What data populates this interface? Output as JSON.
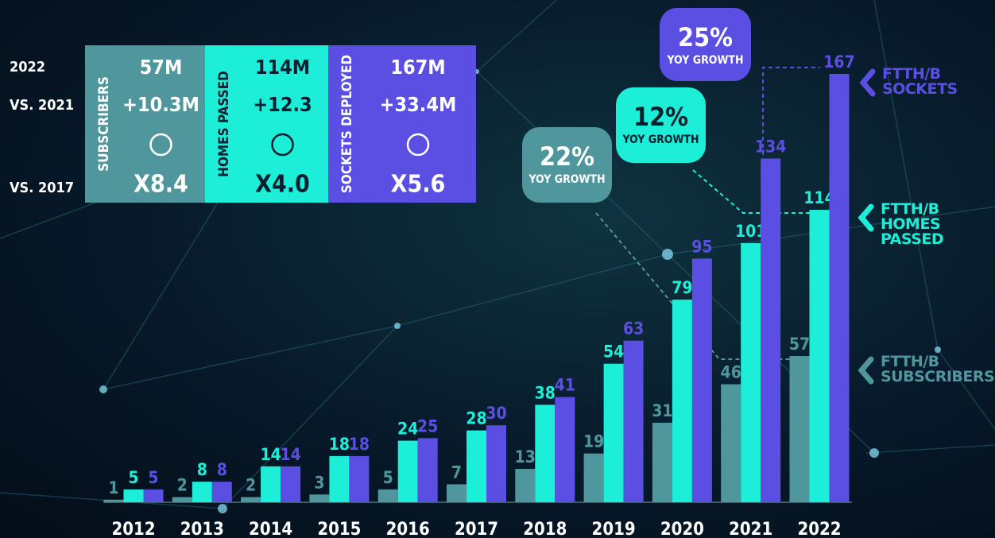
{
  "chart_data": {
    "type": "bar",
    "categories": [
      "2012",
      "2013",
      "2014",
      "2015",
      "2016",
      "2017",
      "2018",
      "2019",
      "2020",
      "2021",
      "2022"
    ],
    "series": [
      {
        "name": "FTTH/B SUBSCRIBERS",
        "color": "#4f979c",
        "values": [
          1,
          2,
          2,
          3,
          5,
          7,
          13,
          19,
          31,
          46,
          57
        ]
      },
      {
        "name": "FTTH/B HOMES PASSED",
        "color": "#1ceed8",
        "values": [
          5,
          8,
          14,
          18,
          24,
          28,
          38,
          54,
          79,
          101,
          114
        ]
      },
      {
        "name": "FTTH/B SOCKETS",
        "color": "#5b4ee2",
        "values": [
          5,
          8,
          14,
          18,
          25,
          30,
          41,
          63,
          95,
          134,
          167
        ]
      }
    ]
  },
  "panel": {
    "row_labels": [
      "2022",
      "VS. 2021",
      "VS. 2017"
    ],
    "cards": [
      {
        "label": "SUBSCRIBERS",
        "total": "57M",
        "change": "+10.3M",
        "multiple": "X8.4"
      },
      {
        "label": "HOMES PASSED",
        "total": "114M",
        "change": "+12.3",
        "multiple": "X4.0"
      },
      {
        "label": "SOCKETS DEPLOYED",
        "total": "167M",
        "change": "+33.4M",
        "multiple": "X5.6"
      }
    ]
  },
  "callouts": [
    {
      "value": "22%",
      "label": "YOY GROWTH"
    },
    {
      "value": "12%",
      "label": "YOY GROWTH"
    },
    {
      "value": "25%",
      "label": "YOY GROWTH"
    }
  ]
}
